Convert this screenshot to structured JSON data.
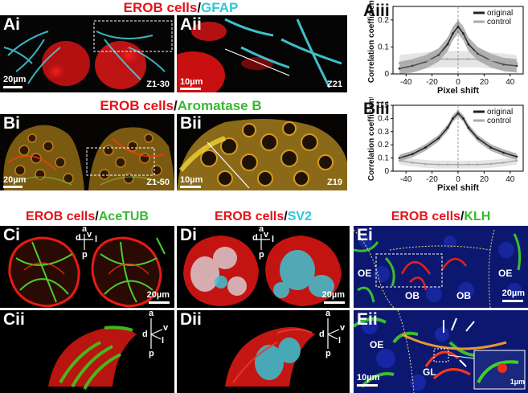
{
  "headers": {
    "erob": "EROB cells",
    "slash": "/",
    "gfap": "GFAP",
    "aromatase": "Aromatase B",
    "acetub": "AceTUB",
    "sv2": "SV2",
    "klh": "KLH"
  },
  "panels": {
    "ai": {
      "label": "Ai",
      "scale": "20µm",
      "z": "Z1-30"
    },
    "aii": {
      "label": "Aii",
      "scale": "10µm",
      "z": "Z21"
    },
    "aiii": {
      "label": "Aiii"
    },
    "bi": {
      "label": "Bi",
      "scale": "20µm",
      "z": "Z1-50"
    },
    "bii": {
      "label": "Bii",
      "scale": "10µm",
      "z": "Z19"
    },
    "biii": {
      "label": "Biii"
    },
    "ci": {
      "label": "Ci",
      "scale": "20µm"
    },
    "cii": {
      "label": "Cii"
    },
    "di": {
      "label": "Di",
      "scale": "20µm"
    },
    "dii": {
      "label": "Dii"
    },
    "ei": {
      "label": "Ei",
      "scale": "20µm",
      "oe_left": "OE",
      "oe_right": "OE",
      "ob_left": "OB",
      "ob_right": "OB"
    },
    "eii": {
      "label": "Eii",
      "scale": "10µm",
      "oe": "OE",
      "gl": "GL",
      "inset_scale": "1µm"
    }
  },
  "axes": {
    "a": "a",
    "p": "p",
    "d": "d",
    "v": "v",
    "l": "l"
  },
  "chart_data": [
    {
      "type": "line",
      "panel": "Aiii",
      "xlabel": "Pixel shift",
      "ylabel": "Correlation coefficient",
      "xlim": [
        -50,
        50
      ],
      "ylim": [
        0,
        0.25
      ],
      "xticks": [
        "-40",
        "-20",
        "0",
        "20",
        "40"
      ],
      "yticks": [
        "0",
        "0.1",
        "0.2"
      ],
      "series": [
        {
          "name": "original",
          "color": "#222222",
          "x": [
            -45,
            -35,
            -25,
            -15,
            -8,
            -4,
            0,
            4,
            8,
            15,
            25,
            35,
            45
          ],
          "y": [
            0.02,
            0.03,
            0.045,
            0.07,
            0.11,
            0.15,
            0.175,
            0.15,
            0.11,
            0.075,
            0.05,
            0.035,
            0.03
          ]
        },
        {
          "name": "control",
          "color": "#aaaaaa",
          "x": [
            -45,
            -35,
            -25,
            -15,
            -8,
            0,
            8,
            15,
            25,
            35,
            45
          ],
          "y": [
            0.04,
            0.045,
            0.05,
            0.055,
            0.055,
            0.055,
            0.055,
            0.055,
            0.05,
            0.045,
            0.04
          ]
        }
      ]
    },
    {
      "type": "line",
      "panel": "Biii",
      "xlabel": "Pixel shift",
      "ylabel": "Correlation coefficient",
      "xlim": [
        -50,
        50
      ],
      "ylim": [
        0,
        0.5
      ],
      "xticks": [
        "-40",
        "-20",
        "0",
        "20",
        "40"
      ],
      "yticks": [
        "0",
        "0.1",
        "0.2",
        "0.3",
        "0.4",
        "0.5"
      ],
      "series": [
        {
          "name": "original",
          "color": "#222222",
          "x": [
            -45,
            -35,
            -25,
            -15,
            -8,
            -4,
            0,
            4,
            8,
            15,
            25,
            35,
            45
          ],
          "y": [
            0.1,
            0.13,
            0.18,
            0.25,
            0.33,
            0.4,
            0.44,
            0.4,
            0.33,
            0.25,
            0.18,
            0.14,
            0.11
          ]
        },
        {
          "name": "control",
          "color": "#aaaaaa",
          "x": [
            -45,
            -35,
            -25,
            -15,
            -8,
            0,
            8,
            15,
            25,
            35,
            45
          ],
          "y": [
            0.08,
            0.065,
            0.055,
            0.05,
            0.05,
            0.05,
            0.05,
            0.05,
            0.055,
            0.065,
            0.08
          ]
        }
      ]
    }
  ]
}
